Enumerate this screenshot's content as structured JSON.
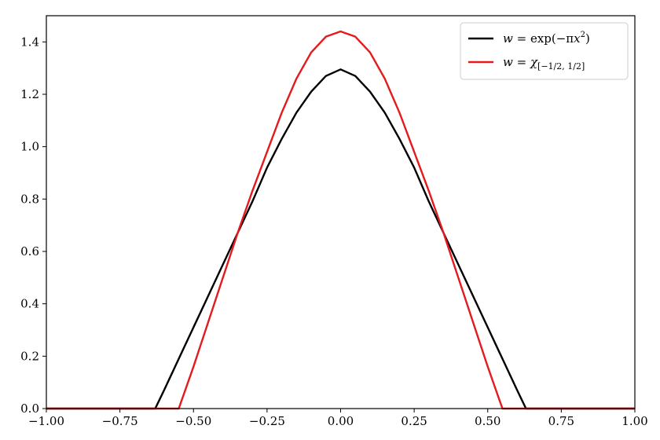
{
  "chart_data": {
    "type": "line",
    "title": "",
    "xlabel": "",
    "ylabel": "",
    "xlim": [
      -1.0,
      1.0
    ],
    "ylim": [
      0.0,
      1.5
    ],
    "xticks": [
      -1.0,
      -0.75,
      -0.5,
      -0.25,
      0.0,
      0.25,
      0.5,
      0.75,
      1.0
    ],
    "xtick_labels": [
      "−1.00",
      "−0.75",
      "−0.50",
      "−0.25",
      "0.00",
      "0.25",
      "0.50",
      "0.75",
      "1.00"
    ],
    "yticks": [
      0.0,
      0.2,
      0.4,
      0.6,
      0.8,
      1.0,
      1.2,
      1.4
    ],
    "ytick_labels": [
      "0.0",
      "0.2",
      "0.4",
      "0.6",
      "0.8",
      "1.0",
      "1.2",
      "1.4"
    ],
    "grid": false,
    "legend_position": "top-right",
    "series": [
      {
        "name": "w = exp(−πx²)",
        "color": "#000000",
        "x": [
          -1.0,
          -0.75,
          -0.63,
          -0.6,
          -0.55,
          -0.5,
          -0.45,
          -0.4,
          -0.35,
          -0.3,
          -0.25,
          -0.2,
          -0.15,
          -0.1,
          -0.05,
          0.0,
          0.05,
          0.1,
          0.15,
          0.2,
          0.25,
          0.3,
          0.35,
          0.4,
          0.45,
          0.5,
          0.55,
          0.6,
          0.63,
          0.75,
          1.0
        ],
        "y": [
          0.0,
          0.0,
          0.0,
          0.07,
          0.19,
          0.31,
          0.43,
          0.55,
          0.67,
          0.79,
          0.92,
          1.03,
          1.13,
          1.21,
          1.27,
          1.295,
          1.27,
          1.21,
          1.13,
          1.03,
          0.92,
          0.79,
          0.67,
          0.55,
          0.43,
          0.31,
          0.19,
          0.07,
          0.0,
          0.0,
          0.0
        ]
      },
      {
        "name": "w = χ[−1/2, 1/2]",
        "color": "#e41a1c",
        "x": [
          -1.0,
          -0.75,
          -0.55,
          -0.5,
          -0.45,
          -0.4,
          -0.35,
          -0.3,
          -0.25,
          -0.2,
          -0.15,
          -0.1,
          -0.05,
          0.0,
          0.05,
          0.1,
          0.15,
          0.2,
          0.25,
          0.3,
          0.35,
          0.4,
          0.45,
          0.5,
          0.55,
          0.75,
          1.0
        ],
        "y": [
          0.0,
          0.0,
          0.0,
          0.16,
          0.33,
          0.5,
          0.67,
          0.83,
          0.98,
          1.13,
          1.26,
          1.36,
          1.42,
          1.44,
          1.42,
          1.36,
          1.26,
          1.13,
          0.98,
          0.83,
          0.67,
          0.5,
          0.33,
          0.16,
          0.0,
          0.0,
          0.0
        ]
      }
    ]
  },
  "legend": {
    "items": [
      {
        "prefix": "w",
        "eq": " = exp(−π",
        "var": "x",
        "sup": "2",
        "suffix": ")"
      },
      {
        "prefix": "w",
        "eq": " = ",
        "var": "χ",
        "sub": "[−1/2, 1/2]"
      }
    ]
  }
}
